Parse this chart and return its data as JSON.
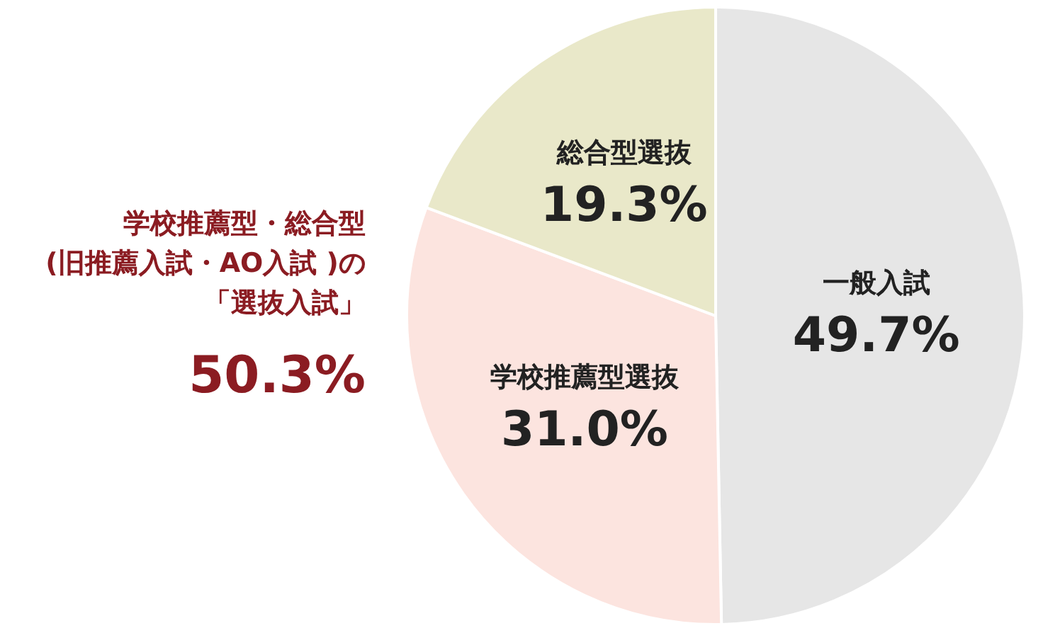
{
  "chart_data": {
    "type": "pie",
    "categories": [
      "一般入試",
      "学校推薦型選抜",
      "総合型選抜"
    ],
    "values": [
      49.7,
      31.0,
      19.3
    ],
    "colors": [
      "#e6e6e6",
      "#fce4df",
      "#e9e8c9"
    ],
    "value_labels": [
      "49.7%",
      "31.0%",
      "19.3%"
    ],
    "annotations": [
      "学校推薦型・総合型",
      "(旧推薦入試・AO入試 )の",
      "「選抜入試」",
      "50.3%"
    ]
  }
}
